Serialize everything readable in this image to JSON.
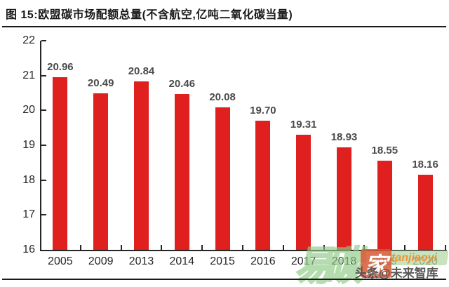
{
  "header": {
    "title": "图 15:欧盟碳市场配额总量(不含航空,亿吨二氧化碳当量)"
  },
  "chart_data": {
    "type": "bar",
    "title": "欧盟碳市场配额总量(不含航空,亿吨二氧化碳当量)",
    "categories": [
      "2005",
      "2009",
      "2013",
      "2014",
      "2015",
      "2016",
      "2017",
      "2018",
      "2019",
      "2020"
    ],
    "values": [
      20.96,
      20.49,
      20.84,
      20.46,
      20.08,
      19.7,
      19.31,
      18.93,
      18.55,
      18.16
    ],
    "value_labels": [
      "20.96",
      "20.49",
      "20.84",
      "20.46",
      "20.08",
      "19.70",
      "19.31",
      "18.93",
      "18.55",
      "18.16"
    ],
    "xlabel": "",
    "ylabel": "",
    "ylim": [
      16,
      22
    ],
    "yticks": [
      "16",
      "17",
      "18",
      "19",
      "20",
      "21",
      "22"
    ],
    "bar_color": "#e01f1f",
    "grid": false,
    "legend": null
  },
  "watermark": {
    "brand_outline_text": "易碳",
    "brand_boxed_text": "家",
    "latin_text": "tanjiaoyi",
    "attribution": "头条@未来智库",
    "green_color": "#8fca85",
    "orange_color": "#e8963c",
    "box_color": "#d85a35"
  }
}
